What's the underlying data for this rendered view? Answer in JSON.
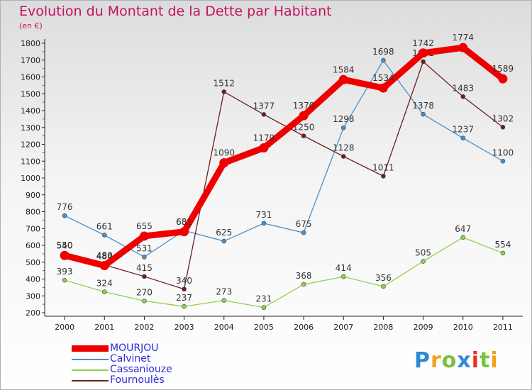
{
  "header": {
    "title": "Evolution du Montant de la Dette par Habitant",
    "unit": "(en €)"
  },
  "colors": {
    "title": "#c4135f",
    "legend_text": "#2b2bd8"
  },
  "chart_data": {
    "type": "line",
    "title": "Evolution du Montant de la Dette par Habitant",
    "subtitle": "(en €)",
    "xlabel": "",
    "ylabel": "",
    "x": [
      "2000",
      "2001",
      "2002",
      "2003",
      "2004",
      "2005",
      "2006",
      "2007",
      "2008",
      "2009",
      "2010",
      "2011"
    ],
    "ylim": [
      200,
      1800
    ],
    "yticks": [
      200,
      300,
      400,
      500,
      600,
      700,
      800,
      900,
      1000,
      1100,
      1200,
      1300,
      1400,
      1500,
      1600,
      1700,
      1800
    ],
    "grid": false,
    "legend_position": "bottom-left",
    "series": [
      {
        "name": "Calvinet",
        "color": "#4a90c8",
        "values": [
          776,
          661,
          531,
          688,
          625,
          731,
          675,
          1298,
          1698,
          1378,
          1237,
          1100
        ]
      },
      {
        "name": "Cassaniouze",
        "color": "#8fd14f",
        "values": [
          393,
          324,
          270,
          237,
          273,
          231,
          368,
          414,
          356,
          505,
          647,
          554
        ]
      },
      {
        "name": "Fournoulès",
        "color": "#6b1f1f",
        "values": [
          550,
          484,
          415,
          340,
          1512,
          1377,
          1250,
          1128,
          1011,
          1691,
          1483,
          1302
        ]
      },
      {
        "name": "MOURJOU",
        "color": "#ee0000",
        "values": [
          540,
          480,
          655,
          681,
          1090,
          1179,
          1370,
          1584,
          1534,
          1742,
          1774,
          1589
        ]
      }
    ]
  },
  "legend": [
    {
      "label": "MOURJOU",
      "color": "#ee0000"
    },
    {
      "label": "Calvinet",
      "color": "#4a90c8"
    },
    {
      "label": "Cassaniouze",
      "color": "#8fd14f"
    },
    {
      "label": "Fournoulès",
      "color": "#6b1f1f"
    }
  ],
  "logo": {
    "letters": [
      "P",
      "r",
      "o",
      "x",
      "i",
      "t",
      "i"
    ],
    "colors": [
      "#2e8bd3",
      "#f4a11d",
      "#7ac142",
      "#2e8bd3",
      "#e6332a",
      "#7ac142",
      "#f4a11d"
    ]
  }
}
